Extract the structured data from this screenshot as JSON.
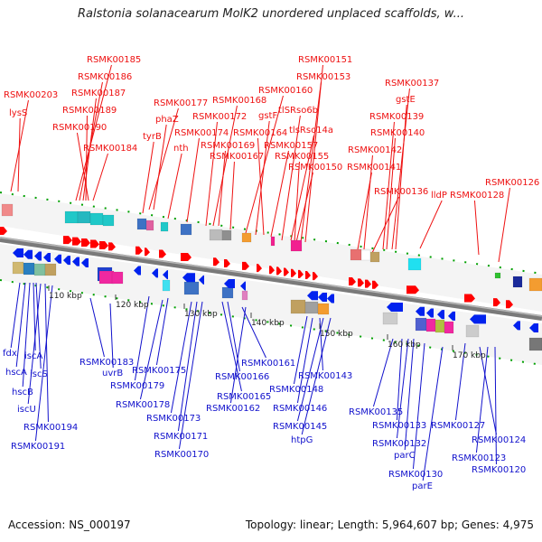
{
  "title": "Ralstonia solanacearum MolK2 unordered unplaced scaffolds, w...",
  "footer": {
    "accession": "Accession: NS_000197",
    "topology": "Topology: linear; Length: 5,964,607 bp; Genes: 4,975"
  },
  "colors": {
    "top_label": "#ee1111",
    "bottom_label": "#1111cc",
    "forward_gene": "#ff0000",
    "reverse_gene": "#0022ee",
    "backbone": "#777777"
  },
  "ticks": [
    "110 kbp",
    "120 kbp",
    "130 kbp",
    "140 kbp",
    "150 kbp",
    "160 kbp",
    "170 kbp"
  ],
  "top_labels": [
    "RSMK00203",
    "lysS",
    "RSMK00185",
    "RSMK00186",
    "RSMK00187",
    "RSMK00189",
    "RSMK00190",
    "RSMK00184",
    "RSMK00177",
    "phaZ",
    "tyrB",
    "nth",
    "RSMK00168",
    "RSMK00172",
    "RSMK00174",
    "RSMK00169",
    "RSMK00167",
    "RSMK00160",
    "gstF",
    "RSMK00164",
    "RSMK00157",
    "RSMK00151",
    "RSMK00153",
    "tlSRso6b",
    "tlsRso14a",
    "RSMK00155",
    "RSMK00150",
    "RSMK00137",
    "gstE",
    "RSMK00139",
    "RSMK00140",
    "RSMK00142",
    "RSMK00141",
    "RSMK00136",
    "lldP",
    "RSMK00128",
    "RSMK00126"
  ],
  "bottom_labels": [
    "fdx",
    "hscA",
    "iscA",
    "iscS",
    "hscB",
    "iscU",
    "RSMK00194",
    "RSMK00191",
    "RSMK00183",
    "uvrB",
    "RSMK00175",
    "RSMK00179",
    "RSMK00178",
    "RSMK00173",
    "RSMK00171",
    "RSMK00170",
    "RSMK00166",
    "RSMK00165",
    "RSMK00161",
    "RSMK00162",
    "RSMK00148",
    "RSMK00143",
    "RSMK00146",
    "RSMK00145",
    "htpG",
    "RSMK00135",
    "RSMK00133",
    "RSMK00132",
    "parC",
    "RSMK00130",
    "parE",
    "RSMK00127",
    "RSMK00124",
    "RSMK00123",
    "RSMK00120"
  ]
}
